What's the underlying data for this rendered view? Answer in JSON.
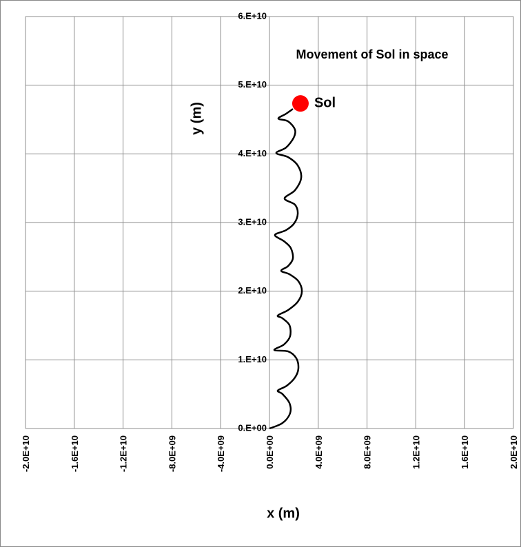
{
  "chart_data": {
    "type": "scatter",
    "title": "Movement of Sol in space",
    "x_label": "x (m)",
    "y_label": "y (m)",
    "grid": true,
    "xlim": [
      -20000000000,
      20000000000
    ],
    "ylim": [
      0,
      60000000000
    ],
    "xticks": [
      {
        "value": -20000000000,
        "label": "-2.0E+10"
      },
      {
        "value": -16000000000,
        "label": "-1.6E+10"
      },
      {
        "value": -12000000000,
        "label": "-1.2E+10"
      },
      {
        "value": -8000000000,
        "label": "-8.0E+09"
      },
      {
        "value": -4000000000,
        "label": "-4.0E+09"
      },
      {
        "value": 0,
        "label": "0.0E+00"
      },
      {
        "value": 4000000000,
        "label": "4.0E+09"
      },
      {
        "value": 8000000000,
        "label": "8.0E+09"
      },
      {
        "value": 12000000000,
        "label": "1.2E+10"
      },
      {
        "value": 16000000000,
        "label": "1.6E+10"
      },
      {
        "value": 20000000000,
        "label": "2.0E+10"
      }
    ],
    "yticks": [
      {
        "value": 0,
        "label": "0.E+00"
      },
      {
        "value": 10000000000,
        "label": "1.E+10"
      },
      {
        "value": 20000000000,
        "label": "2.E+10"
      },
      {
        "value": 30000000000,
        "label": "3.E+10"
      },
      {
        "value": 40000000000,
        "label": "4.E+10"
      },
      {
        "value": 50000000000,
        "label": "5.E+10"
      },
      {
        "value": 60000000000,
        "label": "6.E+10"
      }
    ],
    "series": [
      {
        "color": "#000000",
        "x": [
          0,
          1070000000,
          1690000000,
          1640000000,
          1070000000,
          680000000,
          1410000000,
          2090000000,
          2370000000,
          2200000000,
          1530000000,
          400000000,
          1190000000,
          1690000000,
          1640000000,
          1070000000,
          680000000,
          1530000000,
          2320000000,
          2660000000,
          2370000000,
          1640000000,
          960000000,
          1530000000,
          1920000000,
          1750000000,
          1190000000,
          450000000,
          1360000000,
          2030000000,
          2320000000,
          2090000000,
          1240000000,
          2090000000,
          2600000000,
          2320000000,
          1530000000,
          560000000,
          1360000000,
          1980000000,
          2090000000,
          1530000000,
          730000000,
          1360000000,
          1920000000
        ],
        "values": [
          0,
          800000000,
          2210000000,
          3710000000,
          5020000000,
          5520000000,
          6220000000,
          7420000000,
          8730000000,
          10230000000,
          11230000000,
          11430000000,
          12240000000,
          13440000000,
          15050000000,
          16050000000,
          16450000000,
          17250000000,
          18460000000,
          19960000000,
          21460000000,
          22470000000,
          22970000000,
          23670000000,
          24770000000,
          26280000000,
          27280000000,
          28180000000,
          28890000000,
          29890000000,
          31290000000,
          32600000000,
          33500000000,
          34700000000,
          36510000000,
          38310000000,
          39520000000,
          40120000000,
          40920000000,
          42330000000,
          43530000000,
          44730000000,
          45140000000,
          45840000000,
          46540000000
        ]
      }
    ],
    "marker": {
      "label": "Sol",
      "color": "#ff0000",
      "x": 2540000000,
      "y": 47340000000
    }
  }
}
